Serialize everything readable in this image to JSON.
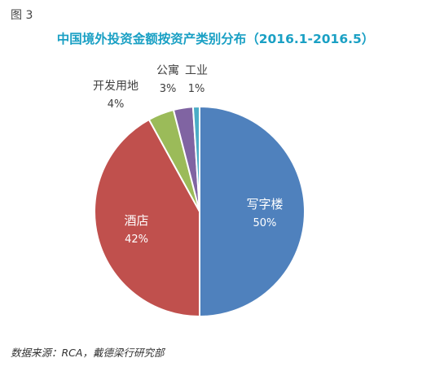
{
  "figure_label": "图 3",
  "source_note": "数据来源：RCA，戴德梁行研究部",
  "colors": {
    "title": "#1aa0c4",
    "office": "#4f81bd",
    "hotel": "#c0504d",
    "development_land": "#9bbb59",
    "apartment": "#8064a2",
    "industrial": "#4bacc6"
  },
  "chart_data": {
    "type": "pie",
    "title": "中国境外投资金额按资产类别分布（2016.1-2016.5）",
    "start_angle_deg": 0,
    "direction": "clockwise",
    "slices": [
      {
        "name": "写字楼",
        "value": 50,
        "label": "50%",
        "color": "#4f81bd",
        "label_position": "inside"
      },
      {
        "name": "酒店",
        "value": 42,
        "label": "42%",
        "color": "#c0504d",
        "label_position": "inside"
      },
      {
        "name": "开发用地",
        "value": 4,
        "label": "4%",
        "color": "#9bbb59",
        "label_position": "outside"
      },
      {
        "name": "公寓",
        "value": 3,
        "label": "3%",
        "color": "#8064a2",
        "label_position": "outside"
      },
      {
        "name": "工业",
        "value": 1,
        "label": "1%",
        "color": "#4bacc6",
        "label_position": "outside"
      }
    ]
  }
}
